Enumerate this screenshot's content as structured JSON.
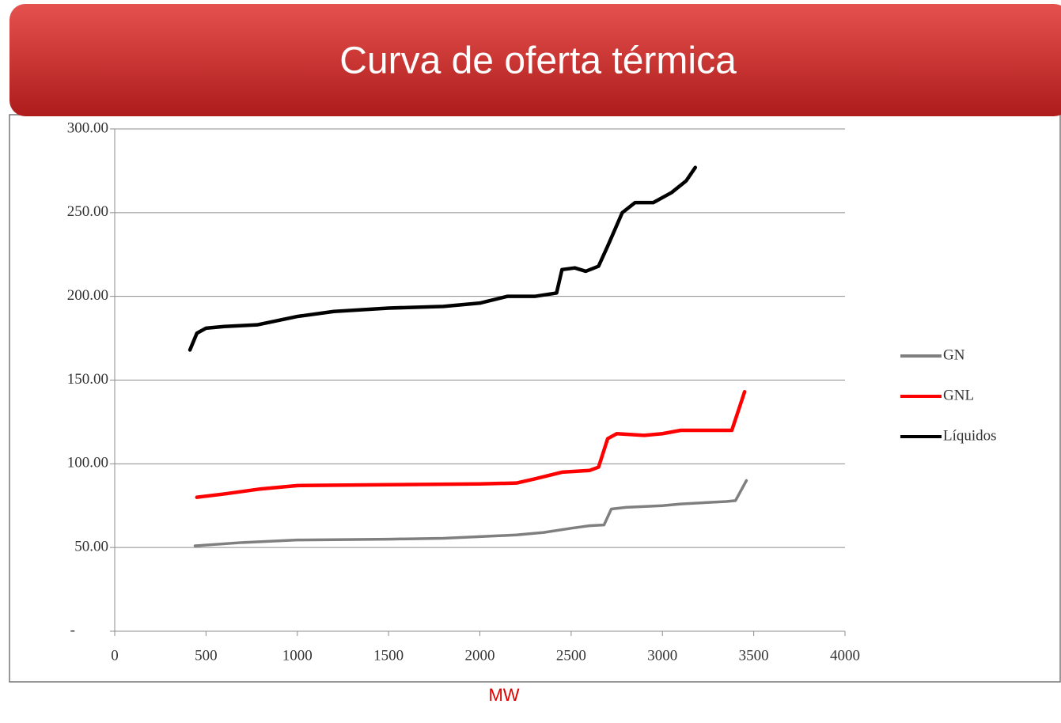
{
  "chart_data": {
    "type": "line",
    "title": "Curva de oferta térmica",
    "xlabel": "MW",
    "xlim": [
      0,
      4000
    ],
    "xticks": [
      0,
      500,
      1000,
      1500,
      2000,
      2500,
      3000,
      3500,
      4000
    ],
    "ylim": [
      0,
      300
    ],
    "yticks": [
      {
        "value": 0,
        "label": "-"
      },
      {
        "value": 50,
        "label": "50.00"
      },
      {
        "value": 100,
        "label": "100.00"
      },
      {
        "value": 150,
        "label": "150.00"
      },
      {
        "value": 200,
        "label": "200.00"
      },
      {
        "value": 250,
        "label": "250.00"
      },
      {
        "value": 300,
        "label": "300.00"
      }
    ],
    "grid": true,
    "legend": "right",
    "series": [
      {
        "name": "GN",
        "color": "#7f7f7f",
        "x": [
          440,
          700,
          1000,
          1500,
          1800,
          2000,
          2200,
          2350,
          2500,
          2600,
          2680,
          2720,
          2800,
          3000,
          3100,
          3350,
          3400,
          3460
        ],
        "values": [
          51,
          53,
          54.5,
          55,
          55.5,
          56.5,
          57.5,
          59,
          61.5,
          63,
          63.5,
          73,
          74,
          75,
          76,
          77.5,
          78,
          90
        ]
      },
      {
        "name": "GNL",
        "color": "#ff0000",
        "x": [
          450,
          600,
          800,
          1000,
          1500,
          2000,
          2200,
          2300,
          2450,
          2600,
          2650,
          2700,
          2750,
          2900,
          3000,
          3100,
          3380,
          3450
        ],
        "values": [
          80,
          82,
          85,
          87,
          87.5,
          88,
          88.5,
          91,
          95,
          96,
          98,
          115,
          118,
          117,
          118,
          120,
          120,
          143
        ]
      },
      {
        "name": "Líquidos",
        "color": "#000000",
        "x": [
          412,
          450,
          500,
          600,
          780,
          1000,
          1200,
          1500,
          1800,
          2000,
          2150,
          2300,
          2420,
          2450,
          2520,
          2580,
          2650,
          2700,
          2780,
          2850,
          2950,
          3050,
          3130,
          3180
        ],
        "values": [
          168,
          178,
          181,
          182,
          183,
          188,
          191,
          193,
          194,
          196,
          200,
          200,
          202,
          216,
          217,
          215,
          218,
          230,
          250,
          256,
          256,
          262,
          269,
          277
        ]
      }
    ]
  }
}
